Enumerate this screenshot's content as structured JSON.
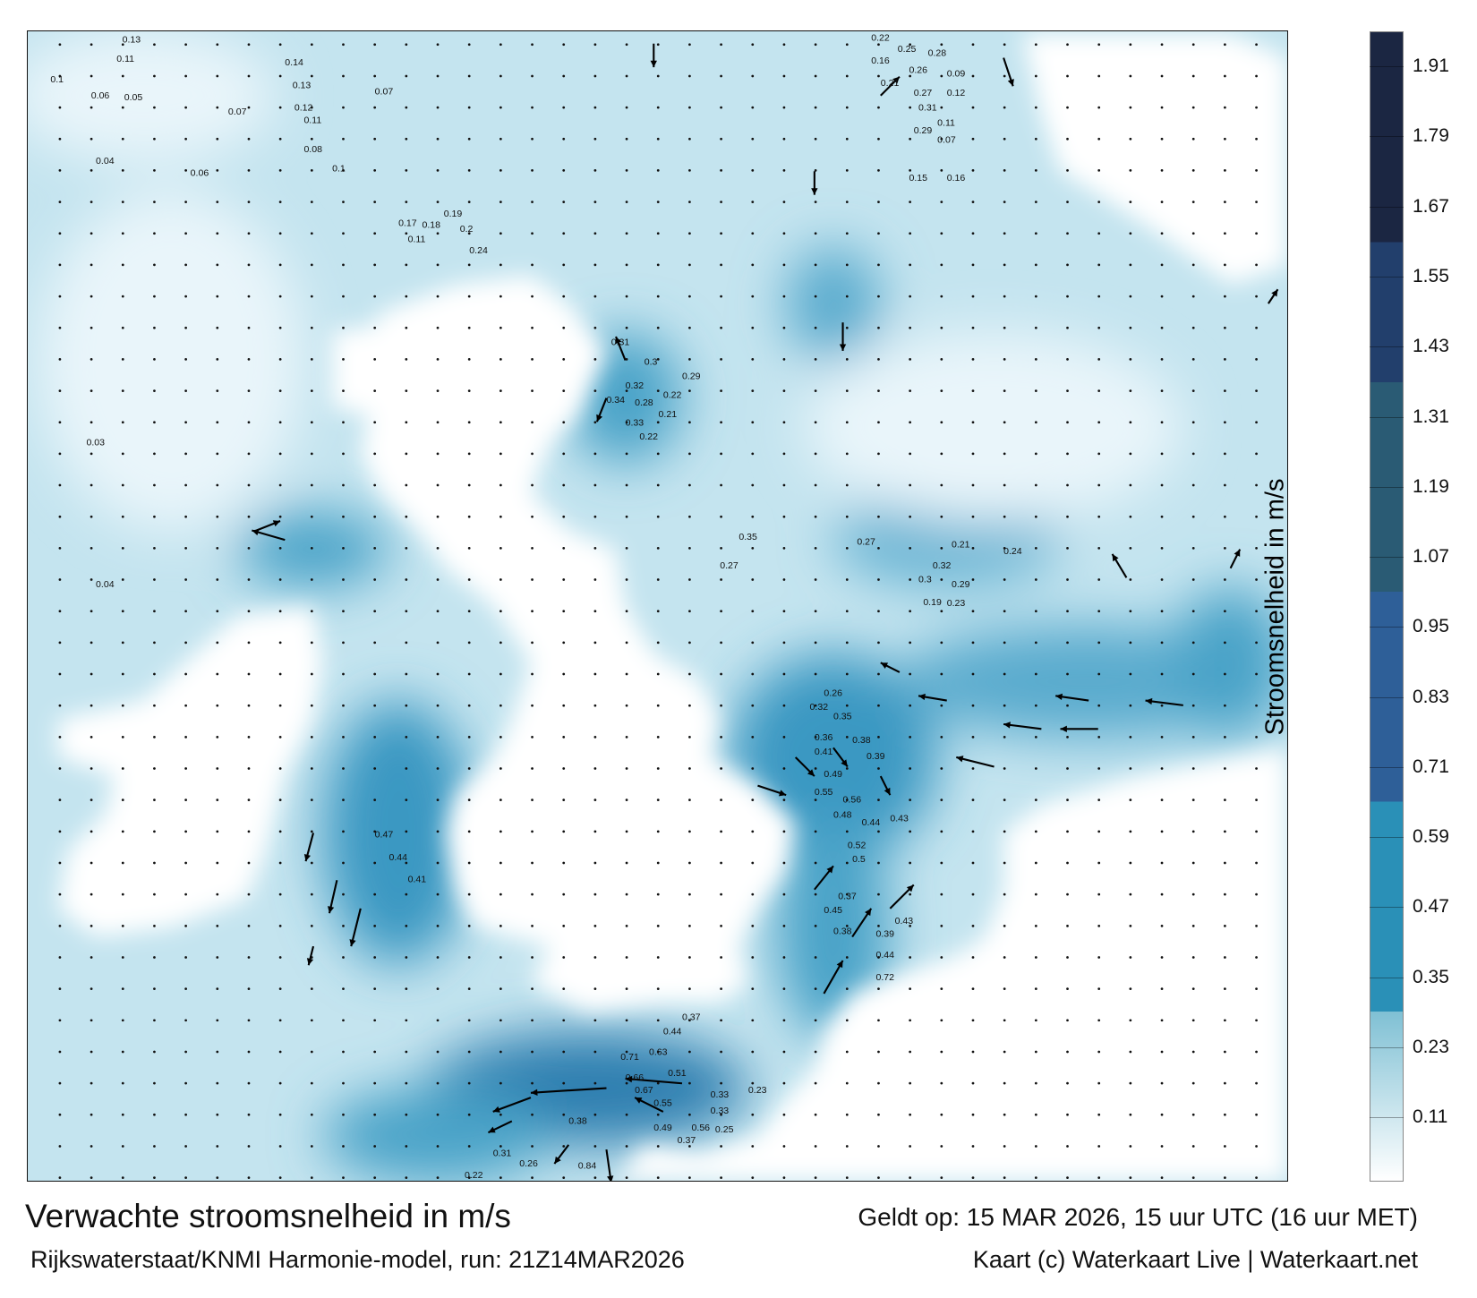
{
  "map": {
    "title": "Verwachte stroomsnelheid in m/s",
    "valid_time": "Geldt op: 15 MAR 2026, 15 uur UTC (16 uur MET)",
    "source": "Rijkswaterstaat/KNMI Harmonie-model, run: 21Z14MAR2026",
    "credit": "Kaart (c) Waterkaart Live | Waterkaart.net",
    "land_color": "#ffffff",
    "sea_color_low": "#e6f4f9",
    "sea_color_high": "#2f78a8",
    "arrow_color": "#000000",
    "speed_labels": [
      "0.13",
      "0.11",
      "0.1",
      "0.06",
      "0.14",
      "0.13",
      "0.12",
      "0.11",
      "0.07",
      "0.04",
      "0.03",
      "0.06",
      "0.07",
      "0.08",
      "0.1",
      "0.11",
      "0.05",
      "0.04",
      "0.22",
      "0.16",
      "0.25",
      "0.26",
      "0.27",
      "0.31",
      "0.28",
      "0.12",
      "0.09",
      "0.21",
      "0.29",
      "0.11",
      "0.07",
      "0.15",
      "0.16",
      "0.17",
      "0.18",
      "0.19",
      "0.2",
      "0.24",
      "0.3",
      "0.32",
      "0.34",
      "0.33",
      "0.28",
      "0.22",
      "0.21",
      "0.31",
      "0.35",
      "0.27",
      "0.29",
      "0.22",
      "0.32",
      "0.29",
      "0.3",
      "0.19",
      "0.23",
      "0.21",
      "0.24",
      "0.27",
      "0.26",
      "0.32",
      "0.35",
      "0.36",
      "0.41",
      "0.49",
      "0.38",
      "0.39",
      "0.55",
      "0.56",
      "0.44",
      "0.52",
      "0.5",
      "0.43",
      "0.48",
      "0.47",
      "0.44",
      "0.41",
      "0.37",
      "0.45",
      "0.38",
      "0.39",
      "0.44",
      "0.43",
      "0.72",
      "0.71",
      "0.63",
      "0.66",
      "0.67",
      "0.55",
      "0.51",
      "0.44",
      "0.37",
      "0.56",
      "0.38",
      "0.33",
      "0.84",
      "0.31",
      "0.26",
      "0.22",
      "0.49",
      "0.37",
      "0.33",
      "0.25",
      "0.23"
    ]
  },
  "colorbar": {
    "label": "Stroomsnelheid in m/s",
    "range": [
      0,
      1.97
    ],
    "ticks": [
      "0.11",
      "0.23",
      "0.35",
      "0.47",
      "0.59",
      "0.71",
      "0.83",
      "0.95",
      "1.07",
      "1.19",
      "1.31",
      "1.43",
      "1.55",
      "1.67",
      "1.79",
      "1.91"
    ],
    "bands": [
      {
        "from": 0,
        "to": 0.29,
        "color_start": "#ffffff",
        "color_end": "#7fc0d4"
      },
      {
        "from": 0.29,
        "to": 0.65,
        "color": "#2a90b7"
      },
      {
        "from": 0.65,
        "to": 1.01,
        "color": "#2e5f98"
      },
      {
        "from": 1.01,
        "to": 1.37,
        "color": "#2a5b74"
      },
      {
        "from": 1.37,
        "to": 1.61,
        "color": "#223f6c"
      },
      {
        "from": 1.61,
        "to": 1.97,
        "color": "#1b2642"
      }
    ]
  }
}
